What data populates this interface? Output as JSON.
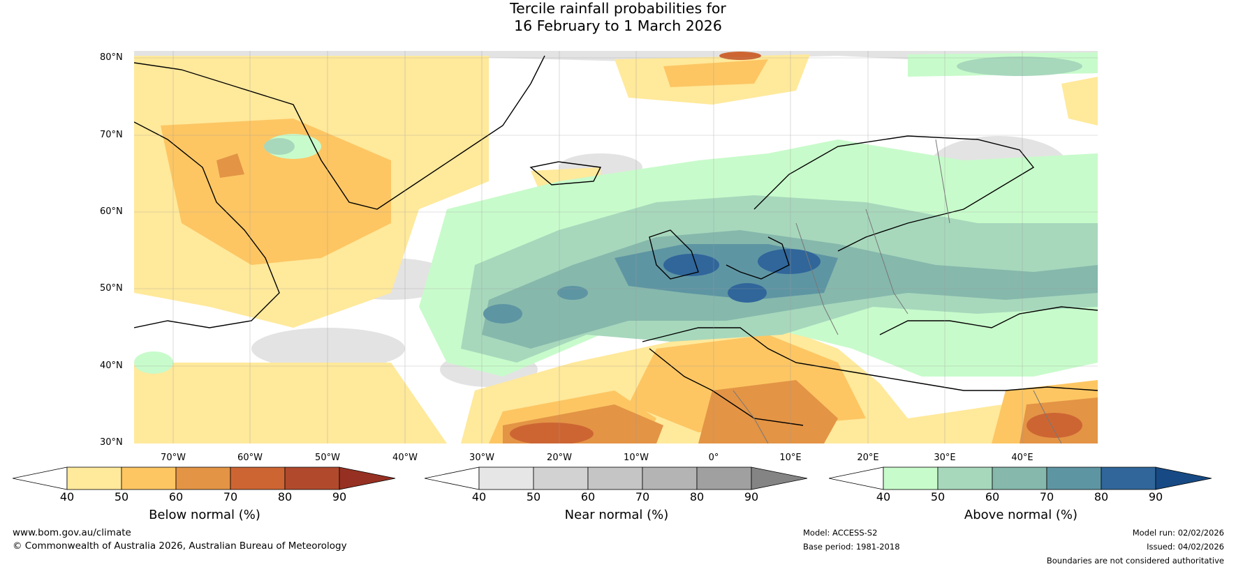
{
  "title": {
    "line1": "Tercile rainfall probabilities for",
    "line2": "16 February to 1 March 2026"
  },
  "map": {
    "lat_labels": [
      "80°N",
      "70°N",
      "60°N",
      "50°N",
      "40°N",
      "30°N"
    ],
    "lon_labels": [
      "70°W",
      "60°W",
      "50°W",
      "40°W",
      "30°W",
      "20°W",
      "10°W",
      "0°",
      "10°E",
      "20°E",
      "30°E",
      "40°E"
    ]
  },
  "colorbars": [
    {
      "title": "Below normal (%)",
      "ticks": [
        "40",
        "50",
        "60",
        "70",
        "80",
        "90"
      ],
      "colors": [
        "#ffffff",
        "#ffe99b",
        "#fdc663",
        "#e39445",
        "#cd6533",
        "#b14a2d",
        "#963022"
      ]
    },
    {
      "title": "Near normal (%)",
      "ticks": [
        "40",
        "50",
        "60",
        "70",
        "80",
        "90"
      ],
      "colors": [
        "#ffffff",
        "#e6e6e6",
        "#d2d2d2",
        "#c5c5c5",
        "#b4b4b4",
        "#a0a0a0",
        "#848484"
      ]
    },
    {
      "title": "Above normal (%)",
      "ticks": [
        "40",
        "50",
        "60",
        "70",
        "80",
        "90"
      ],
      "colors": [
        "#ffffff",
        "#c8fbcb",
        "#a7d8bc",
        "#86b8ac",
        "#5e95a3",
        "#30669a",
        "#174a84"
      ]
    }
  ],
  "footer": {
    "url": "www.bom.gov.au/climate",
    "copyright": "© Commonwealth of Australia 2026, Australian Bureau of Meteorology",
    "model": "Model: ACCESS-S2",
    "base_period": "Base period: 1981-2018",
    "model_run": "Model run: 02/02/2026",
    "issued": "Issued: 04/02/2026",
    "disclaimer": "Boundaries are not considered authoritative"
  }
}
